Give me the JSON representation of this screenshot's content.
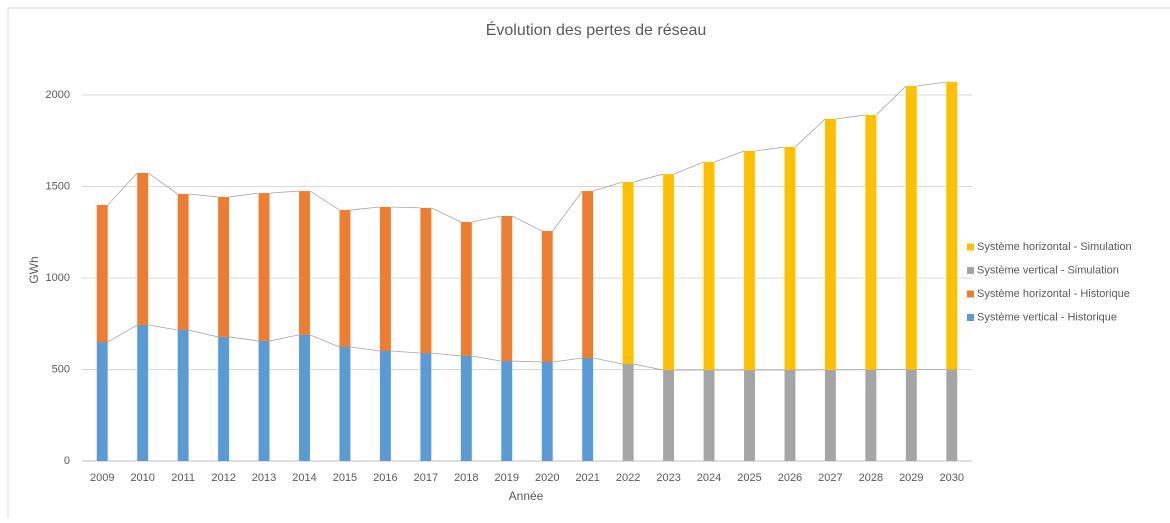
{
  "chart_data": {
    "type": "stacked_bar",
    "title": "Évolution des pertes de réseau",
    "xlabel": "Année",
    "ylabel": "GWh",
    "categories": [
      "2009",
      "2010",
      "2011",
      "2012",
      "2013",
      "2014",
      "2015",
      "2016",
      "2017",
      "2018",
      "2019",
      "2020",
      "2021",
      "2022",
      "2023",
      "2024",
      "2025",
      "2026",
      "2027",
      "2028",
      "2029",
      "2030"
    ],
    "series": [
      {
        "name": "Système vertical - Historique",
        "color": "#5b9bd5",
        "values": [
          650,
          743,
          716,
          678,
          656,
          689,
          623,
          601,
          590,
          574,
          546,
          541,
          563,
          null,
          null,
          null,
          null,
          null,
          null,
          null,
          null,
          null
        ]
      },
      {
        "name": "Système horizontal - Historique",
        "color": "#ed7d31",
        "values": [
          749,
          831,
          743,
          765,
          808,
          786,
          749,
          787,
          793,
          732,
          793,
          716,
          912,
          null,
          null,
          null,
          null,
          null,
          null,
          null,
          null,
          null
        ]
      },
      {
        "name": "Système vertical - Simulation",
        "color": "#a5a5a5",
        "values": [
          null,
          null,
          null,
          null,
          null,
          null,
          null,
          null,
          null,
          null,
          null,
          null,
          null,
          530,
          497,
          497,
          497,
          497,
          498,
          499,
          500,
          500
        ]
      },
      {
        "name": "Système horizontal - Simulation",
        "color": "#ffc000",
        "values": [
          null,
          null,
          null,
          null,
          null,
          null,
          null,
          null,
          null,
          null,
          null,
          null,
          null,
          995,
          1071,
          1137,
          1197,
          1219,
          1371,
          1392,
          1549,
          1571
        ]
      }
    ],
    "ylim": [
      0,
      2200
    ],
    "yticks": [
      0,
      500,
      1000,
      1500,
      2000
    ],
    "grid": true,
    "legend": "right"
  }
}
